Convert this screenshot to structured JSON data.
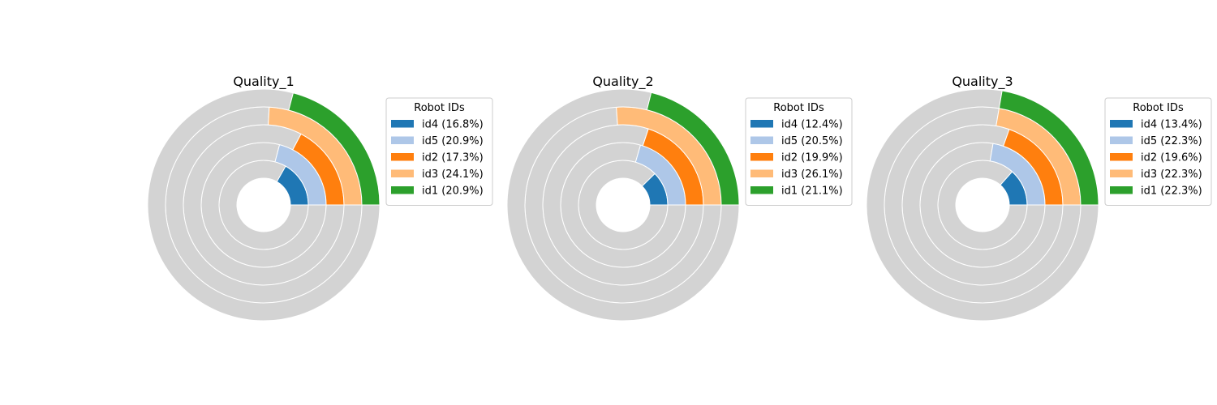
{
  "chart_data": [
    {
      "type": "radial-bar",
      "title": "Quality_1",
      "legend_title": "Robot IDs",
      "legend_position": "right",
      "series": [
        {
          "name": "id4",
          "value": 16.8,
          "label": "id4 (16.8%)",
          "color": "#1f77b4"
        },
        {
          "name": "id5",
          "value": 20.9,
          "label": "id5 (20.9%)",
          "color": "#aec7e8"
        },
        {
          "name": "id2",
          "value": 17.3,
          "label": "id2 (17.3%)",
          "color": "#ff7f0e"
        },
        {
          "name": "id3",
          "value": 24.1,
          "label": "id3 (24.1%)",
          "color": "#ffbb78"
        },
        {
          "name": "id1",
          "value": 20.9,
          "label": "id1 (20.9%)",
          "color": "#2ca02c"
        }
      ]
    },
    {
      "type": "radial-bar",
      "title": "Quality_2",
      "legend_title": "Robot IDs",
      "legend_position": "right",
      "series": [
        {
          "name": "id4",
          "value": 12.4,
          "label": "id4 (12.4%)",
          "color": "#1f77b4"
        },
        {
          "name": "id5",
          "value": 20.5,
          "label": "id5 (20.5%)",
          "color": "#aec7e8"
        },
        {
          "name": "id2",
          "value": 19.9,
          "label": "id2 (19.9%)",
          "color": "#ff7f0e"
        },
        {
          "name": "id3",
          "value": 26.1,
          "label": "id3 (26.1%)",
          "color": "#ffbb78"
        },
        {
          "name": "id1",
          "value": 21.1,
          "label": "id1 (21.1%)",
          "color": "#2ca02c"
        }
      ]
    },
    {
      "type": "radial-bar",
      "title": "Quality_3",
      "legend_title": "Robot IDs",
      "legend_position": "right",
      "series": [
        {
          "name": "id4",
          "value": 13.4,
          "label": "id4 (13.4%)",
          "color": "#1f77b4"
        },
        {
          "name": "id5",
          "value": 22.3,
          "label": "id5 (22.3%)",
          "color": "#aec7e8"
        },
        {
          "name": "id2",
          "value": 19.6,
          "label": "id2 (19.6%)",
          "color": "#ff7f0e"
        },
        {
          "name": "id3",
          "value": 22.3,
          "label": "id3 (22.3%)",
          "color": "#ffbb78"
        },
        {
          "name": "id1",
          "value": 22.3,
          "label": "id1 (22.3%)",
          "color": "#2ca02c"
        }
      ]
    }
  ],
  "colors": {
    "background_ring": "#d3d3d3",
    "separator": "#ffffff"
  }
}
